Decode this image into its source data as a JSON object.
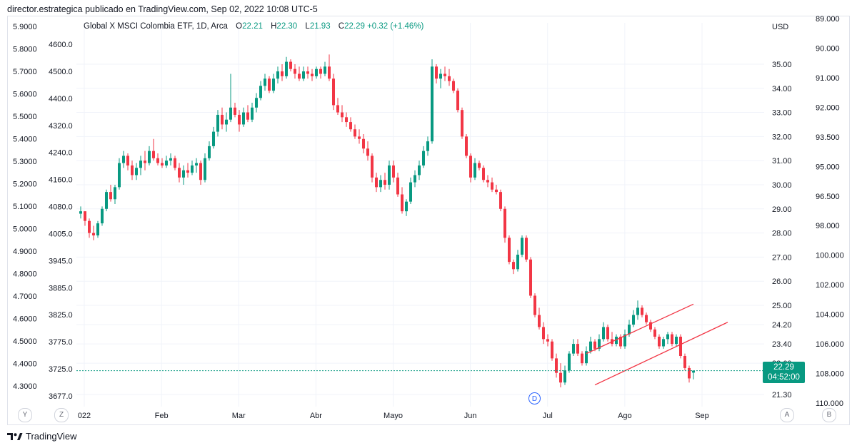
{
  "header": {
    "caption": "director.estrategica publicado en TradingView.com, Sep 02, 2022 10:08 UTC-5"
  },
  "legend": {
    "symbol": "Global X MSCI Colombia ETF, 1D, Arca",
    "open_label": "O",
    "open": "22.21",
    "high_label": "H",
    "high": "22.30",
    "low_label": "L",
    "low": "21.93",
    "close_label": "C",
    "close": "22.29",
    "change": "+0.32 (+1.46%)"
  },
  "axes": {
    "currency": "USD",
    "left_outer_ticks": [
      "5.9000",
      "5.8000",
      "5.7000",
      "5.6000",
      "5.5000",
      "5.4000",
      "5.3000",
      "5.2000",
      "5.1000",
      "5.0000",
      "4.9000",
      "4.8000",
      "4.7000",
      "4.6000",
      "4.5000",
      "4.4000",
      "4.3000"
    ],
    "left_inner_ticks": [
      "4600.0",
      "4500.0",
      "4400.0",
      "4320.0",
      "4240.0",
      "4160.0",
      "4080.0",
      "4005.0",
      "3945.0",
      "3885.0",
      "3825.0",
      "3775.0",
      "3725.0",
      "3677.0"
    ],
    "right_inner_ticks": [
      "35.00",
      "34.00",
      "33.00",
      "32.00",
      "31.00",
      "30.00",
      "29.00",
      "28.00",
      "27.00",
      "26.00",
      "25.00",
      "24.20",
      "23.40",
      "22.60",
      "21.30"
    ],
    "right_outer_ticks": [
      "89.000",
      "90.000",
      "91.000",
      "92.000",
      "93.500",
      "95.000",
      "96.500",
      "98.000",
      "100.000",
      "102.000",
      "104.000",
      "106.000",
      "108.000",
      "110.000"
    ],
    "x_ticks": [
      "022",
      "Feb",
      "Mar",
      "Abr",
      "Mayo",
      "Jun",
      "Jul",
      "Ago",
      "Sep"
    ]
  },
  "badge": {
    "price": "22.29",
    "countdown": "04:52:00"
  },
  "event_marker": "D",
  "nav_buttons": {
    "y": "Y",
    "z": "Z",
    "a": "A",
    "b": "B"
  },
  "footer": {
    "brand": "TradingView"
  },
  "colors": {
    "up": "#089981",
    "down": "#f23645",
    "channel": "#f23645",
    "last_price_line": "#089981"
  },
  "chart_data": {
    "type": "candlestick",
    "title": "Global X MSCI Colombia ETF, 1D, Arca",
    "ylabel": "USD",
    "ylim": [
      20.8,
      36.3
    ],
    "last_price": 22.29,
    "candles": [
      {
        "o": 28.8,
        "h": 29.1,
        "l": 28.6,
        "c": 28.9
      },
      {
        "o": 28.9,
        "h": 28.9,
        "l": 28.3,
        "c": 28.5
      },
      {
        "o": 28.5,
        "h": 28.6,
        "l": 27.8,
        "c": 28.0
      },
      {
        "o": 28.0,
        "h": 28.3,
        "l": 27.7,
        "c": 27.9
      },
      {
        "o": 27.9,
        "h": 28.5,
        "l": 27.8,
        "c": 28.4
      },
      {
        "o": 28.4,
        "h": 29.1,
        "l": 28.3,
        "c": 29.0
      },
      {
        "o": 29.0,
        "h": 29.8,
        "l": 28.9,
        "c": 29.7
      },
      {
        "o": 29.7,
        "h": 30.0,
        "l": 29.3,
        "c": 29.4
      },
      {
        "o": 29.4,
        "h": 30.0,
        "l": 29.2,
        "c": 29.9
      },
      {
        "o": 29.9,
        "h": 31.1,
        "l": 29.8,
        "c": 30.9
      },
      {
        "o": 30.9,
        "h": 31.4,
        "l": 30.7,
        "c": 31.2
      },
      {
        "o": 31.2,
        "h": 31.3,
        "l": 30.6,
        "c": 30.8
      },
      {
        "o": 30.8,
        "h": 31.0,
        "l": 30.2,
        "c": 30.4
      },
      {
        "o": 30.4,
        "h": 30.9,
        "l": 30.2,
        "c": 30.7
      },
      {
        "o": 30.7,
        "h": 31.2,
        "l": 30.4,
        "c": 31.0
      },
      {
        "o": 31.0,
        "h": 31.4,
        "l": 30.6,
        "c": 30.9
      },
      {
        "o": 30.9,
        "h": 31.6,
        "l": 30.8,
        "c": 31.4
      },
      {
        "o": 31.4,
        "h": 31.9,
        "l": 31.0,
        "c": 31.1
      },
      {
        "o": 31.1,
        "h": 31.3,
        "l": 30.8,
        "c": 30.9
      },
      {
        "o": 30.9,
        "h": 31.1,
        "l": 30.7,
        "c": 30.8
      },
      {
        "o": 30.8,
        "h": 31.2,
        "l": 30.7,
        "c": 31.0
      },
      {
        "o": 31.0,
        "h": 31.3,
        "l": 30.8,
        "c": 31.1
      },
      {
        "o": 31.1,
        "h": 31.2,
        "l": 30.6,
        "c": 30.7
      },
      {
        "o": 30.7,
        "h": 30.9,
        "l": 30.1,
        "c": 30.3
      },
      {
        "o": 30.3,
        "h": 30.8,
        "l": 30.0,
        "c": 30.6
      },
      {
        "o": 30.6,
        "h": 30.9,
        "l": 30.3,
        "c": 30.5
      },
      {
        "o": 30.5,
        "h": 31.0,
        "l": 30.4,
        "c": 30.8
      },
      {
        "o": 30.8,
        "h": 31.1,
        "l": 30.5,
        "c": 30.9
      },
      {
        "o": 30.9,
        "h": 31.0,
        "l": 30.0,
        "c": 30.2
      },
      {
        "o": 30.2,
        "h": 31.3,
        "l": 30.1,
        "c": 31.1
      },
      {
        "o": 31.1,
        "h": 31.8,
        "l": 31.0,
        "c": 31.6
      },
      {
        "o": 31.6,
        "h": 32.4,
        "l": 31.5,
        "c": 32.2
      },
      {
        "o": 32.2,
        "h": 33.1,
        "l": 32.0,
        "c": 32.9
      },
      {
        "o": 32.9,
        "h": 33.2,
        "l": 32.3,
        "c": 32.5
      },
      {
        "o": 32.5,
        "h": 33.0,
        "l": 32.2,
        "c": 32.7
      },
      {
        "o": 32.7,
        "h": 34.6,
        "l": 32.6,
        "c": 33.2
      },
      {
        "o": 33.2,
        "h": 33.4,
        "l": 32.8,
        "c": 32.9
      },
      {
        "o": 32.9,
        "h": 33.1,
        "l": 32.2,
        "c": 32.5
      },
      {
        "o": 32.5,
        "h": 33.2,
        "l": 32.4,
        "c": 33.0
      },
      {
        "o": 33.0,
        "h": 33.3,
        "l": 32.6,
        "c": 32.7
      },
      {
        "o": 32.7,
        "h": 33.4,
        "l": 32.6,
        "c": 33.2
      },
      {
        "o": 33.2,
        "h": 33.8,
        "l": 33.0,
        "c": 33.6
      },
      {
        "o": 33.6,
        "h": 34.3,
        "l": 33.5,
        "c": 34.1
      },
      {
        "o": 34.1,
        "h": 34.6,
        "l": 33.9,
        "c": 34.4
      },
      {
        "o": 34.4,
        "h": 34.5,
        "l": 33.8,
        "c": 33.9
      },
      {
        "o": 33.9,
        "h": 34.6,
        "l": 33.8,
        "c": 34.4
      },
      {
        "o": 34.4,
        "h": 34.9,
        "l": 34.2,
        "c": 34.7
      },
      {
        "o": 34.7,
        "h": 35.0,
        "l": 34.3,
        "c": 34.5
      },
      {
        "o": 34.5,
        "h": 35.3,
        "l": 34.4,
        "c": 35.1
      },
      {
        "o": 35.1,
        "h": 35.2,
        "l": 34.7,
        "c": 34.8
      },
      {
        "o": 34.8,
        "h": 35.0,
        "l": 34.4,
        "c": 34.6
      },
      {
        "o": 34.6,
        "h": 34.9,
        "l": 34.3,
        "c": 34.4
      },
      {
        "o": 34.4,
        "h": 34.9,
        "l": 34.3,
        "c": 34.7
      },
      {
        "o": 34.7,
        "h": 34.9,
        "l": 34.4,
        "c": 34.6
      },
      {
        "o": 34.6,
        "h": 34.8,
        "l": 34.3,
        "c": 34.5
      },
      {
        "o": 34.5,
        "h": 34.9,
        "l": 34.4,
        "c": 34.8
      },
      {
        "o": 34.8,
        "h": 34.9,
        "l": 34.4,
        "c": 34.6
      },
      {
        "o": 34.6,
        "h": 35.1,
        "l": 34.5,
        "c": 34.9
      },
      {
        "o": 34.9,
        "h": 35.4,
        "l": 34.3,
        "c": 34.4
      },
      {
        "o": 34.4,
        "h": 34.6,
        "l": 33.1,
        "c": 33.3
      },
      {
        "o": 33.3,
        "h": 33.6,
        "l": 32.9,
        "c": 33.0
      },
      {
        "o": 33.0,
        "h": 33.3,
        "l": 32.6,
        "c": 32.8
      },
      {
        "o": 32.8,
        "h": 33.0,
        "l": 32.4,
        "c": 32.6
      },
      {
        "o": 32.6,
        "h": 32.8,
        "l": 32.2,
        "c": 32.3
      },
      {
        "o": 32.3,
        "h": 32.5,
        "l": 31.9,
        "c": 32.0
      },
      {
        "o": 32.0,
        "h": 32.3,
        "l": 31.7,
        "c": 31.9
      },
      {
        "o": 31.9,
        "h": 32.1,
        "l": 31.3,
        "c": 31.5
      },
      {
        "o": 31.5,
        "h": 31.8,
        "l": 31.0,
        "c": 31.2
      },
      {
        "o": 31.2,
        "h": 31.3,
        "l": 30.1,
        "c": 30.3
      },
      {
        "o": 30.3,
        "h": 30.5,
        "l": 29.7,
        "c": 29.9
      },
      {
        "o": 29.9,
        "h": 30.4,
        "l": 29.7,
        "c": 30.2
      },
      {
        "o": 30.2,
        "h": 30.5,
        "l": 29.8,
        "c": 30.0
      },
      {
        "o": 30.0,
        "h": 31.0,
        "l": 29.8,
        "c": 30.8
      },
      {
        "o": 30.8,
        "h": 31.0,
        "l": 30.1,
        "c": 30.3
      },
      {
        "o": 30.3,
        "h": 30.5,
        "l": 29.5,
        "c": 29.6
      },
      {
        "o": 29.6,
        "h": 29.9,
        "l": 28.8,
        "c": 28.9
      },
      {
        "o": 28.9,
        "h": 29.4,
        "l": 28.7,
        "c": 29.3
      },
      {
        "o": 29.3,
        "h": 30.3,
        "l": 29.2,
        "c": 30.1
      },
      {
        "o": 30.1,
        "h": 30.6,
        "l": 29.9,
        "c": 30.4
      },
      {
        "o": 30.4,
        "h": 31.0,
        "l": 30.2,
        "c": 30.8
      },
      {
        "o": 30.8,
        "h": 31.6,
        "l": 30.7,
        "c": 31.4
      },
      {
        "o": 31.4,
        "h": 32.0,
        "l": 31.2,
        "c": 31.8
      },
      {
        "o": 31.8,
        "h": 35.2,
        "l": 31.7,
        "c": 34.9
      },
      {
        "o": 34.9,
        "h": 35.0,
        "l": 34.2,
        "c": 34.4
      },
      {
        "o": 34.4,
        "h": 34.8,
        "l": 34.0,
        "c": 34.6
      },
      {
        "o": 34.6,
        "h": 34.9,
        "l": 34.3,
        "c": 34.5
      },
      {
        "o": 34.5,
        "h": 34.8,
        "l": 34.1,
        "c": 34.3
      },
      {
        "o": 34.3,
        "h": 34.4,
        "l": 33.8,
        "c": 33.9
      },
      {
        "o": 33.9,
        "h": 34.0,
        "l": 33.0,
        "c": 33.1
      },
      {
        "o": 33.1,
        "h": 33.2,
        "l": 31.9,
        "c": 32.0
      },
      {
        "o": 32.0,
        "h": 32.1,
        "l": 31.1,
        "c": 31.2
      },
      {
        "o": 31.2,
        "h": 31.3,
        "l": 30.1,
        "c": 30.3
      },
      {
        "o": 30.3,
        "h": 31.1,
        "l": 30.2,
        "c": 30.9
      },
      {
        "o": 30.9,
        "h": 31.0,
        "l": 30.6,
        "c": 30.7
      },
      {
        "o": 30.7,
        "h": 30.8,
        "l": 30.1,
        "c": 30.2
      },
      {
        "o": 30.2,
        "h": 30.4,
        "l": 29.9,
        "c": 30.1
      },
      {
        "o": 30.1,
        "h": 30.3,
        "l": 29.7,
        "c": 29.8
      },
      {
        "o": 29.8,
        "h": 30.0,
        "l": 29.6,
        "c": 29.7
      },
      {
        "o": 29.7,
        "h": 29.8,
        "l": 28.9,
        "c": 29.0
      },
      {
        "o": 29.0,
        "h": 29.1,
        "l": 27.6,
        "c": 27.8
      },
      {
        "o": 27.8,
        "h": 27.9,
        "l": 26.7,
        "c": 26.8
      },
      {
        "o": 26.8,
        "h": 26.9,
        "l": 26.3,
        "c": 26.5
      },
      {
        "o": 26.5,
        "h": 27.3,
        "l": 26.4,
        "c": 27.1
      },
      {
        "o": 27.1,
        "h": 27.9,
        "l": 27.0,
        "c": 27.8
      },
      {
        "o": 27.8,
        "h": 27.9,
        "l": 26.8,
        "c": 26.9
      },
      {
        "o": 26.9,
        "h": 27.0,
        "l": 25.3,
        "c": 25.4
      },
      {
        "o": 25.4,
        "h": 25.5,
        "l": 24.5,
        "c": 24.6
      },
      {
        "o": 24.6,
        "h": 24.9,
        "l": 24.0,
        "c": 24.1
      },
      {
        "o": 24.1,
        "h": 24.3,
        "l": 23.4,
        "c": 23.6
      },
      {
        "o": 23.6,
        "h": 23.8,
        "l": 23.3,
        "c": 23.5
      },
      {
        "o": 23.5,
        "h": 23.6,
        "l": 22.7,
        "c": 22.8
      },
      {
        "o": 22.8,
        "h": 23.0,
        "l": 22.0,
        "c": 22.2
      },
      {
        "o": 22.2,
        "h": 22.6,
        "l": 21.6,
        "c": 21.8
      },
      {
        "o": 21.8,
        "h": 22.5,
        "l": 21.7,
        "c": 22.3
      },
      {
        "o": 22.3,
        "h": 23.1,
        "l": 22.2,
        "c": 23.0
      },
      {
        "o": 23.0,
        "h": 23.6,
        "l": 22.9,
        "c": 23.4
      },
      {
        "o": 23.4,
        "h": 23.6,
        "l": 22.9,
        "c": 23.0
      },
      {
        "o": 23.0,
        "h": 23.1,
        "l": 22.5,
        "c": 22.6
      },
      {
        "o": 22.6,
        "h": 23.3,
        "l": 22.5,
        "c": 23.1
      },
      {
        "o": 23.1,
        "h": 23.7,
        "l": 23.0,
        "c": 23.5
      },
      {
        "o": 23.5,
        "h": 23.6,
        "l": 23.1,
        "c": 23.2
      },
      {
        "o": 23.2,
        "h": 23.8,
        "l": 23.1,
        "c": 23.6
      },
      {
        "o": 23.6,
        "h": 24.3,
        "l": 23.5,
        "c": 24.1
      },
      {
        "o": 24.1,
        "h": 24.2,
        "l": 23.5,
        "c": 23.6
      },
      {
        "o": 23.6,
        "h": 23.9,
        "l": 23.3,
        "c": 23.4
      },
      {
        "o": 23.4,
        "h": 23.8,
        "l": 23.3,
        "c": 23.7
      },
      {
        "o": 23.7,
        "h": 23.8,
        "l": 23.2,
        "c": 23.3
      },
      {
        "o": 23.3,
        "h": 24.0,
        "l": 23.2,
        "c": 23.8
      },
      {
        "o": 23.8,
        "h": 24.4,
        "l": 23.7,
        "c": 24.2
      },
      {
        "o": 24.2,
        "h": 24.8,
        "l": 24.1,
        "c": 24.6
      },
      {
        "o": 24.6,
        "h": 25.2,
        "l": 24.4,
        "c": 24.9
      },
      {
        "o": 24.9,
        "h": 25.0,
        "l": 24.5,
        "c": 24.6
      },
      {
        "o": 24.6,
        "h": 24.7,
        "l": 24.2,
        "c": 24.3
      },
      {
        "o": 24.3,
        "h": 24.4,
        "l": 23.9,
        "c": 24.0
      },
      {
        "o": 24.0,
        "h": 24.1,
        "l": 23.6,
        "c": 23.7
      },
      {
        "o": 23.7,
        "h": 23.8,
        "l": 23.2,
        "c": 23.3
      },
      {
        "o": 23.3,
        "h": 23.7,
        "l": 23.2,
        "c": 23.6
      },
      {
        "o": 23.6,
        "h": 23.9,
        "l": 23.4,
        "c": 23.8
      },
      {
        "o": 23.8,
        "h": 23.9,
        "l": 23.3,
        "c": 23.4
      },
      {
        "o": 23.4,
        "h": 23.8,
        "l": 23.3,
        "c": 23.7
      },
      {
        "o": 23.7,
        "h": 23.8,
        "l": 22.8,
        "c": 22.9
      },
      {
        "o": 22.9,
        "h": 23.0,
        "l": 22.3,
        "c": 22.4
      },
      {
        "o": 22.4,
        "h": 22.5,
        "l": 21.8,
        "c": 21.97
      },
      {
        "o": 22.21,
        "h": 22.3,
        "l": 21.93,
        "c": 22.29
      }
    ],
    "channel_upper": [
      [
        118,
        23.0
      ],
      [
        143,
        25.05
      ]
    ],
    "channel_lower": [
      [
        120,
        21.7
      ],
      [
        151,
        24.3
      ]
    ]
  }
}
